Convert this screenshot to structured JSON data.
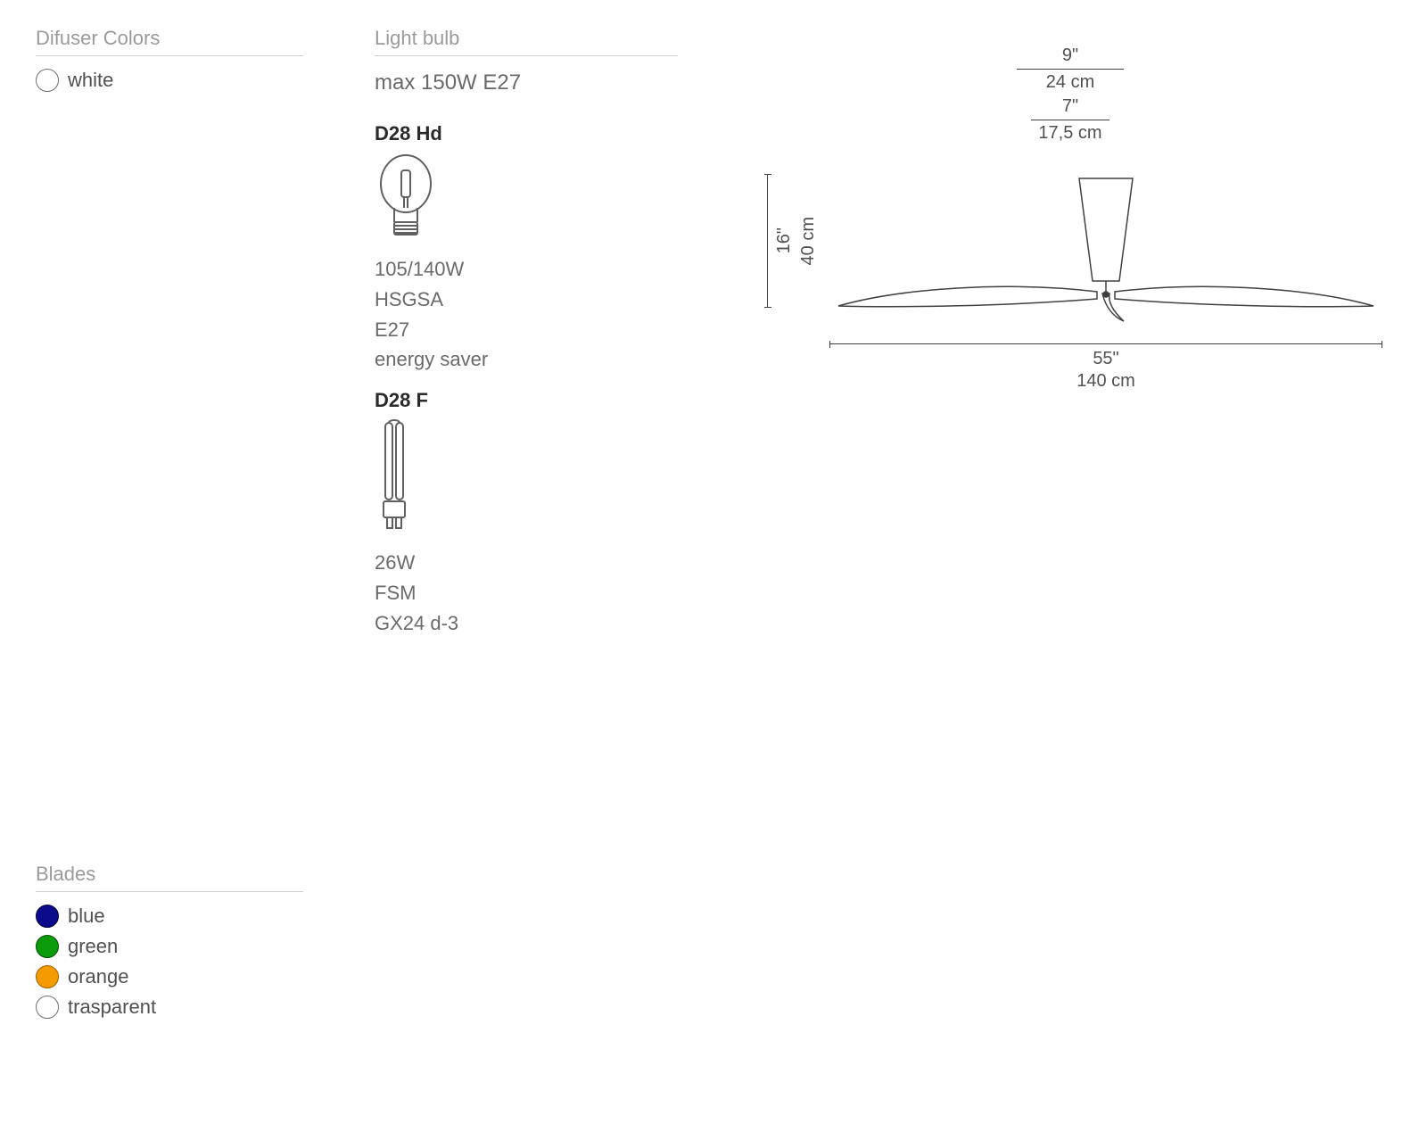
{
  "diffuser": {
    "title": "Difuser Colors",
    "items": [
      {
        "label": "white",
        "color": "#ffffff",
        "border": "#707070"
      }
    ]
  },
  "blades": {
    "title": "Blades",
    "items": [
      {
        "label": "blue",
        "color": "#0a0a8a",
        "border": "#000040"
      },
      {
        "label": "green",
        "color": "#0a9a0a",
        "border": "#005000"
      },
      {
        "label": "orange",
        "color": "#f59b00",
        "border": "#a06000"
      },
      {
        "label": "trasparent",
        "color": "#ffffff",
        "border": "#707070"
      }
    ]
  },
  "bulb": {
    "title": "Light bulb",
    "max": "max 150W E27",
    "models": [
      {
        "name": "D28 Hd",
        "specs": [
          "105/140W",
          "HSGSA",
          "E27",
          "energy saver"
        ],
        "icon": "incandescent"
      },
      {
        "name": "D28 F",
        "specs": [
          "26W",
          "FSM",
          "GX24 d-3"
        ],
        "icon": "cfl"
      }
    ]
  },
  "diagram": {
    "top_in": "9\"",
    "top_cm": "24 cm",
    "mid_in": "7\"",
    "mid_cm": "17,5 cm",
    "height_in": "16\"",
    "height_cm": "40 cm",
    "span_in": "55\"",
    "span_cm": "140 cm",
    "stroke": "#404040"
  },
  "colors": {
    "title": "#9a9a9a",
    "text": "#505050",
    "bold": "#2a2a2a",
    "divider": "#d0d0d0"
  }
}
